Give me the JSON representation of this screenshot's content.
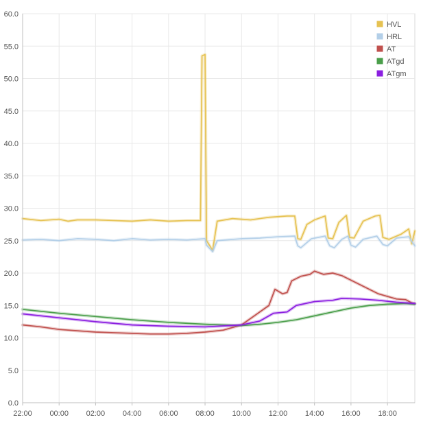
{
  "chart_data": {
    "type": "line",
    "title": "",
    "xlabel": "",
    "ylabel": "",
    "ylim": [
      0,
      60
    ],
    "xlim": [
      "22:00",
      "19:30"
    ],
    "grid": true,
    "legend_position": "top-right",
    "y_ticks": [
      "0.0",
      "5.0",
      "10.0",
      "15.0",
      "20.0",
      "25.0",
      "30.0",
      "35.0",
      "40.0",
      "45.0",
      "50.0",
      "55.0",
      "60.0"
    ],
    "x_ticks": [
      "22:00",
      "00:00",
      "02:00",
      "04:00",
      "06:00",
      "08:00",
      "10:00",
      "12:00",
      "14:00",
      "16:00",
      "18:00"
    ],
    "series": [
      {
        "name": "HVL",
        "color": "#e6c252",
        "points": [
          [
            "22:00",
            28.4
          ],
          [
            "23:00",
            28.1
          ],
          [
            "00:00",
            28.3
          ],
          [
            "00:30",
            28.0
          ],
          [
            "01:00",
            28.2
          ],
          [
            "02:00",
            28.2
          ],
          [
            "03:00",
            28.1
          ],
          [
            "04:00",
            28.0
          ],
          [
            "05:00",
            28.2
          ],
          [
            "06:00",
            28.0
          ],
          [
            "07:00",
            28.1
          ],
          [
            "07:45",
            28.1
          ],
          [
            "07:50",
            53.5
          ],
          [
            "08:00",
            53.7
          ],
          [
            "08:05",
            25.0
          ],
          [
            "08:25",
            23.5
          ],
          [
            "08:40",
            28.0
          ],
          [
            "09:30",
            28.4
          ],
          [
            "10:30",
            28.2
          ],
          [
            "11:30",
            28.6
          ],
          [
            "12:30",
            28.8
          ],
          [
            "12:55",
            28.8
          ],
          [
            "13:05",
            25.3
          ],
          [
            "13:15",
            25.2
          ],
          [
            "13:35",
            27.5
          ],
          [
            "14:00",
            28.2
          ],
          [
            "14:35",
            28.8
          ],
          [
            "14:45",
            25.4
          ],
          [
            "15:00",
            25.3
          ],
          [
            "15:20",
            27.8
          ],
          [
            "15:45",
            28.9
          ],
          [
            "15:55",
            25.5
          ],
          [
            "16:10",
            25.4
          ],
          [
            "16:40",
            28.0
          ],
          [
            "17:20",
            28.8
          ],
          [
            "17:35",
            28.9
          ],
          [
            "17:45",
            25.5
          ],
          [
            "18:05",
            25.2
          ],
          [
            "18:45",
            26.0
          ],
          [
            "19:10",
            26.8
          ],
          [
            "19:20",
            24.5
          ],
          [
            "19:30",
            26.5
          ]
        ]
      },
      {
        "name": "HRL",
        "color": "#b3cfe8",
        "points": [
          [
            "22:00",
            25.1
          ],
          [
            "23:00",
            25.2
          ],
          [
            "00:00",
            25.0
          ],
          [
            "01:00",
            25.3
          ],
          [
            "02:00",
            25.2
          ],
          [
            "03:00",
            25.0
          ],
          [
            "04:00",
            25.3
          ],
          [
            "05:00",
            25.1
          ],
          [
            "06:00",
            25.2
          ],
          [
            "07:00",
            25.1
          ],
          [
            "08:00",
            25.3
          ],
          [
            "08:05",
            24.3
          ],
          [
            "08:25",
            23.3
          ],
          [
            "08:40",
            25.0
          ],
          [
            "10:00",
            25.3
          ],
          [
            "11:00",
            25.4
          ],
          [
            "12:00",
            25.6
          ],
          [
            "12:55",
            25.7
          ],
          [
            "13:05",
            24.2
          ],
          [
            "13:15",
            23.9
          ],
          [
            "13:50",
            25.3
          ],
          [
            "14:35",
            25.7
          ],
          [
            "14:50",
            24.2
          ],
          [
            "15:05",
            23.9
          ],
          [
            "15:30",
            25.2
          ],
          [
            "15:50",
            25.7
          ],
          [
            "16:00",
            24.3
          ],
          [
            "16:15",
            24.0
          ],
          [
            "16:40",
            25.2
          ],
          [
            "17:25",
            25.7
          ],
          [
            "17:45",
            24.4
          ],
          [
            "18:00",
            24.2
          ],
          [
            "18:30",
            25.4
          ],
          [
            "19:10",
            25.6
          ],
          [
            "19:30",
            24.2
          ]
        ]
      },
      {
        "name": "AT",
        "color": "#c0504d",
        "points": [
          [
            "22:00",
            12.0
          ],
          [
            "23:00",
            11.7
          ],
          [
            "00:00",
            11.3
          ],
          [
            "01:00",
            11.1
          ],
          [
            "02:00",
            10.9
          ],
          [
            "03:00",
            10.8
          ],
          [
            "04:00",
            10.7
          ],
          [
            "05:00",
            10.6
          ],
          [
            "06:00",
            10.6
          ],
          [
            "07:00",
            10.7
          ],
          [
            "08:00",
            10.9
          ],
          [
            "09:00",
            11.2
          ],
          [
            "10:00",
            12.0
          ],
          [
            "10:45",
            13.5
          ],
          [
            "11:30",
            15.0
          ],
          [
            "11:50",
            17.5
          ],
          [
            "12:15",
            16.8
          ],
          [
            "12:30",
            17.0
          ],
          [
            "12:45",
            18.8
          ],
          [
            "13:15",
            19.5
          ],
          [
            "13:45",
            19.8
          ],
          [
            "14:00",
            20.3
          ],
          [
            "14:30",
            19.8
          ],
          [
            "15:00",
            20.0
          ],
          [
            "15:30",
            19.6
          ],
          [
            "16:00",
            18.9
          ],
          [
            "16:30",
            18.2
          ],
          [
            "17:00",
            17.5
          ],
          [
            "17:30",
            16.8
          ],
          [
            "18:00",
            16.4
          ],
          [
            "18:30",
            16.0
          ],
          [
            "19:00",
            15.9
          ],
          [
            "19:20",
            15.4
          ],
          [
            "19:30",
            15.3
          ]
        ]
      },
      {
        "name": "ATgd",
        "color": "#4a9e4a",
        "points": [
          [
            "22:00",
            14.4
          ],
          [
            "00:00",
            13.8
          ],
          [
            "02:00",
            13.3
          ],
          [
            "04:00",
            12.8
          ],
          [
            "06:00",
            12.4
          ],
          [
            "08:00",
            12.1
          ],
          [
            "10:00",
            11.9
          ],
          [
            "11:00",
            12.1
          ],
          [
            "12:00",
            12.4
          ],
          [
            "13:00",
            12.8
          ],
          [
            "14:00",
            13.4
          ],
          [
            "15:00",
            14.0
          ],
          [
            "16:00",
            14.6
          ],
          [
            "17:00",
            15.0
          ],
          [
            "18:00",
            15.2
          ],
          [
            "19:00",
            15.3
          ],
          [
            "19:30",
            15.2
          ]
        ]
      },
      {
        "name": "ATgm",
        "color": "#8b1fe0",
        "points": [
          [
            "22:00",
            13.7
          ],
          [
            "00:00",
            13.1
          ],
          [
            "02:00",
            12.5
          ],
          [
            "04:00",
            12.0
          ],
          [
            "06:00",
            11.8
          ],
          [
            "08:00",
            11.7
          ],
          [
            "10:00",
            12.0
          ],
          [
            "11:00",
            12.6
          ],
          [
            "11:45",
            13.8
          ],
          [
            "12:30",
            14.0
          ],
          [
            "13:00",
            15.0
          ],
          [
            "14:00",
            15.6
          ],
          [
            "15:00",
            15.8
          ],
          [
            "15:30",
            16.1
          ],
          [
            "16:30",
            16.0
          ],
          [
            "17:30",
            15.8
          ],
          [
            "18:30",
            15.5
          ],
          [
            "19:30",
            15.3
          ]
        ]
      }
    ]
  }
}
